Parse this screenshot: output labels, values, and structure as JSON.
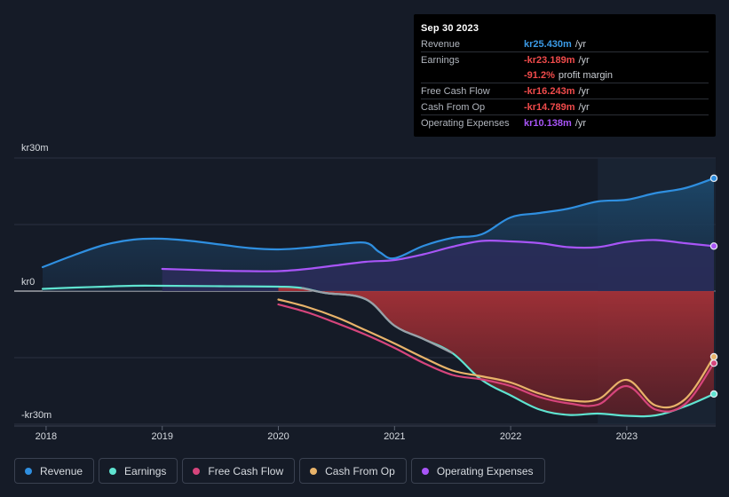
{
  "tooltip": {
    "date": "Sep 30 2023",
    "rows": [
      {
        "label": "Revenue",
        "value": "kr25.430m",
        "unit": "/yr",
        "color": "#3b9ae6"
      },
      {
        "label": "Earnings",
        "value": "-kr23.189m",
        "unit": "/yr",
        "color": "#f04b4b"
      },
      {
        "label": "",
        "value": "-91.2%",
        "unit": "profit margin",
        "color": "#f04b4b"
      },
      {
        "label": "Free Cash Flow",
        "value": "-kr16.243m",
        "unit": "/yr",
        "color": "#f04b4b"
      },
      {
        "label": "Cash From Op",
        "value": "-kr14.789m",
        "unit": "/yr",
        "color": "#f04b4b"
      },
      {
        "label": "Operating Expenses",
        "value": "kr10.138m",
        "unit": "/yr",
        "color": "#a855f7"
      }
    ]
  },
  "legend": [
    {
      "label": "Revenue",
      "color": "#2f8fe0"
    },
    {
      "label": "Earnings",
      "color": "#5fe3d0"
    },
    {
      "label": "Free Cash Flow",
      "color": "#d6457c"
    },
    {
      "label": "Cash From Op",
      "color": "#e8b36a"
    },
    {
      "label": "Operating Expenses",
      "color": "#a855f7"
    }
  ],
  "chart_data": {
    "type": "area",
    "title": "",
    "xlabel": "",
    "ylabel": "",
    "unit": "kr m",
    "ylim": [
      -30,
      30
    ],
    "y_tick_labels": [
      {
        "value": 30,
        "label": "kr30m"
      },
      {
        "value": 0,
        "label": "kr0"
      },
      {
        "value": -30,
        "label": "-kr30m"
      }
    ],
    "xlim": [
      2017.97,
      2023.75
    ],
    "x_tick_labels": [
      "2018",
      "2019",
      "2020",
      "2021",
      "2022",
      "2023"
    ],
    "x_ticks": [
      2018,
      2019,
      2020,
      2021,
      2022,
      2023
    ],
    "highlight_from": 2022.75,
    "series": [
      {
        "name": "Revenue",
        "color": "#2f8fe0",
        "fill": "#1b3a55",
        "points": [
          [
            2017.97,
            5.4
          ],
          [
            2018.25,
            8.2
          ],
          [
            2018.5,
            10.4
          ],
          [
            2018.75,
            11.6
          ],
          [
            2019,
            11.8
          ],
          [
            2019.25,
            11.3
          ],
          [
            2019.5,
            10.5
          ],
          [
            2019.75,
            9.7
          ],
          [
            2020,
            9.4
          ],
          [
            2020.25,
            9.8
          ],
          [
            2020.5,
            10.5
          ],
          [
            2020.75,
            10.9
          ],
          [
            2020.87,
            8.8
          ],
          [
            2021,
            7.4
          ],
          [
            2021.25,
            10.2
          ],
          [
            2021.5,
            12.0
          ],
          [
            2021.75,
            12.8
          ],
          [
            2022,
            16.6
          ],
          [
            2022.25,
            17.6
          ],
          [
            2022.5,
            18.6
          ],
          [
            2022.75,
            20.2
          ],
          [
            2023,
            20.6
          ],
          [
            2023.25,
            22.1
          ],
          [
            2023.5,
            23.2
          ],
          [
            2023.75,
            25.43
          ]
        ]
      },
      {
        "name": "Operating Expenses",
        "color": "#a855f7",
        "fill": "#2d2f5e",
        "points": [
          [
            2019,
            5.0
          ],
          [
            2019.25,
            4.8
          ],
          [
            2019.5,
            4.6
          ],
          [
            2019.75,
            4.5
          ],
          [
            2020,
            4.5
          ],
          [
            2020.25,
            5.0
          ],
          [
            2020.5,
            5.8
          ],
          [
            2020.75,
            6.6
          ],
          [
            2021,
            7.0
          ],
          [
            2021.25,
            8.3
          ],
          [
            2021.5,
            10.0
          ],
          [
            2021.75,
            11.3
          ],
          [
            2022,
            11.2
          ],
          [
            2022.25,
            10.8
          ],
          [
            2022.5,
            9.9
          ],
          [
            2022.75,
            9.9
          ],
          [
            2023,
            11.1
          ],
          [
            2023.25,
            11.5
          ],
          [
            2023.5,
            10.8
          ],
          [
            2023.75,
            10.14
          ]
        ]
      },
      {
        "name": "Earnings",
        "color": "#5fe3d0",
        "fill": "#7a2c34",
        "points": [
          [
            2017.97,
            0.5
          ],
          [
            2018.25,
            0.8
          ],
          [
            2018.5,
            1.0
          ],
          [
            2018.75,
            1.2
          ],
          [
            2019,
            1.2
          ],
          [
            2019.5,
            1.1
          ],
          [
            2020,
            1.0
          ],
          [
            2020.2,
            0.7
          ],
          [
            2020.4,
            -0.4
          ],
          [
            2020.75,
            -1.8
          ],
          [
            2021,
            -7.8
          ],
          [
            2021.25,
            -10.8
          ],
          [
            2021.5,
            -14.0
          ],
          [
            2021.75,
            -20.0
          ],
          [
            2022,
            -23.5
          ],
          [
            2022.25,
            -26.7
          ],
          [
            2022.5,
            -27.9
          ],
          [
            2022.75,
            -27.6
          ],
          [
            2023,
            -28.1
          ],
          [
            2023.25,
            -28.0
          ],
          [
            2023.5,
            -26.0
          ],
          [
            2023.75,
            -23.19
          ]
        ]
      },
      {
        "name": "Free Cash Flow",
        "color": "#d6457c",
        "points": [
          [
            2020,
            -3.0
          ],
          [
            2020.25,
            -4.8
          ],
          [
            2020.5,
            -7.2
          ],
          [
            2020.75,
            -9.8
          ],
          [
            2021,
            -12.8
          ],
          [
            2021.25,
            -16.2
          ],
          [
            2021.5,
            -18.9
          ],
          [
            2021.75,
            -19.9
          ],
          [
            2022,
            -21.4
          ],
          [
            2022.25,
            -23.9
          ],
          [
            2022.5,
            -25.3
          ],
          [
            2022.75,
            -25.6
          ],
          [
            2023,
            -21.4
          ],
          [
            2023.25,
            -26.7
          ],
          [
            2023.5,
            -25.5
          ],
          [
            2023.75,
            -16.24
          ]
        ]
      },
      {
        "name": "Cash From Op",
        "color": "#e8b36a",
        "points": [
          [
            2020,
            -1.9
          ],
          [
            2020.25,
            -3.6
          ],
          [
            2020.5,
            -5.9
          ],
          [
            2020.75,
            -8.8
          ],
          [
            2021,
            -11.8
          ],
          [
            2021.25,
            -15.0
          ],
          [
            2021.5,
            -17.9
          ],
          [
            2021.75,
            -19.2
          ],
          [
            2022,
            -20.6
          ],
          [
            2022.25,
            -23.1
          ],
          [
            2022.5,
            -24.6
          ],
          [
            2022.75,
            -24.4
          ],
          [
            2023,
            -20.0
          ],
          [
            2023.25,
            -25.8
          ],
          [
            2023.5,
            -24.4
          ],
          [
            2023.75,
            -14.79
          ]
        ]
      }
    ]
  }
}
